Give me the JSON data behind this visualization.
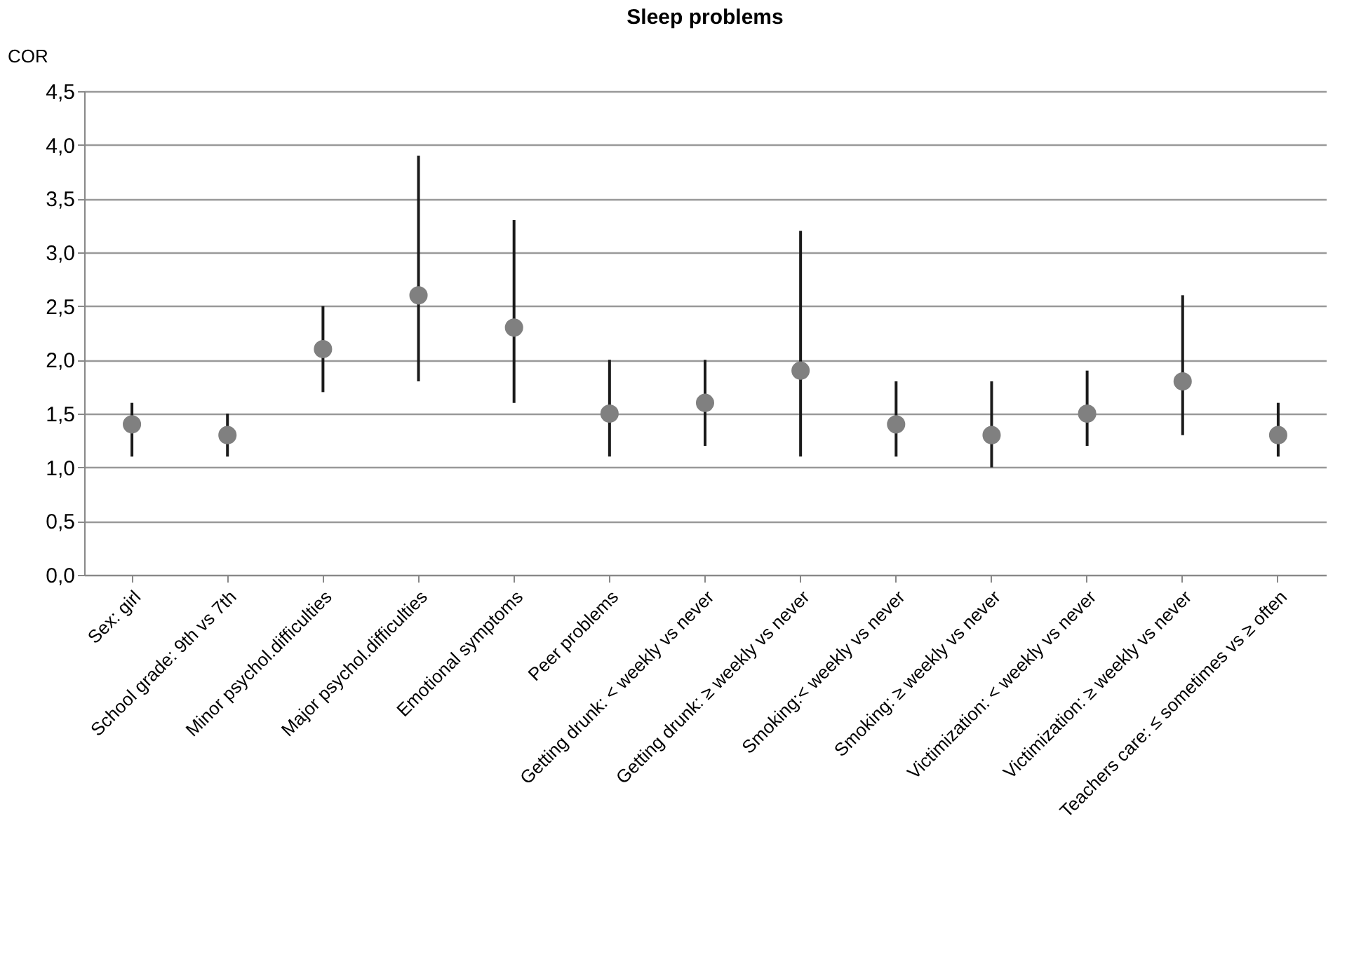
{
  "chart_data": {
    "type": "scatter",
    "title": "Sleep problems",
    "ylabel": "COR",
    "categories": [
      "Sex: girl",
      "School grade: 9th vs 7th",
      "Minor psychol.difficulties",
      "Major psychol.difficulties",
      "Emotional symptoms",
      "Peer problems",
      "Getting drunk: < weekly vs never",
      "Getting drunk:  ≥ weekly vs never",
      "Smoking:< weekly vs never",
      "Smoking:  ≥ weekly vs never",
      "Victimization: < weekly vs never",
      "Victimization:  ≥ weekly vs never",
      "Teachers care:  ≤ sometimes vs  ≥ often"
    ],
    "series": [
      {
        "color": "#808080",
        "values": [
          1.4,
          1.3,
          2.1,
          2.6,
          2.3,
          1.5,
          1.6,
          1.9,
          1.4,
          1.3,
          1.5,
          1.8,
          1.3
        ],
        "errors": [
          [
            1.1,
            1.6
          ],
          [
            1.1,
            1.5
          ],
          [
            1.7,
            2.5
          ],
          [
            1.8,
            3.9
          ],
          [
            1.6,
            3.3
          ],
          [
            1.1,
            2.0
          ],
          [
            1.2,
            2.0
          ],
          [
            1.1,
            3.2
          ],
          [
            1.1,
            1.8
          ],
          [
            1.0,
            1.8
          ],
          [
            1.2,
            1.9
          ],
          [
            1.3,
            2.6
          ],
          [
            1.1,
            1.6
          ]
        ]
      }
    ],
    "ylim": [
      0,
      4.5
    ],
    "yticks": [
      {
        "value": 0,
        "label": "0,0"
      },
      {
        "value": 0.5,
        "label": "0,5"
      },
      {
        "value": 1,
        "label": "1,0"
      },
      {
        "value": 1.5,
        "label": "1,5"
      },
      {
        "value": 2,
        "label": "2,0"
      },
      {
        "value": 2.5,
        "label": "2,5"
      },
      {
        "value": 3,
        "label": "3,0"
      },
      {
        "value": 3.5,
        "label": "3,5"
      },
      {
        "value": 4,
        "label": "4,0"
      },
      {
        "value": 4.5,
        "label": "4,5"
      }
    ],
    "grid": "y",
    "marker": "circle"
  }
}
